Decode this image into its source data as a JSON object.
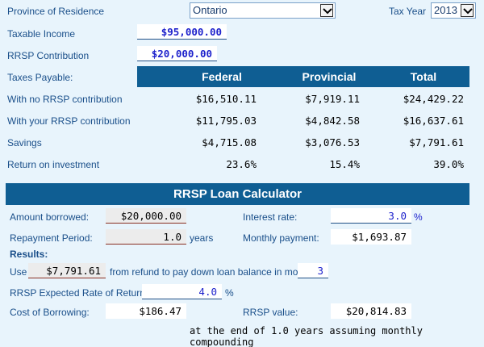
{
  "province": {
    "label": "Province of Residence",
    "selected": "Ontario"
  },
  "tax_year": {
    "label": "Tax Year",
    "selected": "2013"
  },
  "taxable_income": {
    "label": "Taxable Income",
    "value": "$95,000.00"
  },
  "rrsp_contribution": {
    "label": "RRSP Contribution",
    "value": "$20,000.00"
  },
  "taxes": {
    "label": "Taxes Payable:",
    "headers": [
      "Federal",
      "Provincial",
      "Total"
    ],
    "rows": [
      {
        "label": "With no RRSP contribution",
        "values": [
          "$16,510.11",
          "$7,919.11",
          "$24,429.22"
        ]
      },
      {
        "label": "With your RRSP contribution",
        "values": [
          "$11,795.03",
          "$4,842.58",
          "$16,637.61"
        ]
      },
      {
        "label": "Savings",
        "values": [
          "$4,715.08",
          "$3,076.53",
          "$7,791.61"
        ]
      },
      {
        "label": "Return on investment",
        "values": [
          "23.6%",
          "15.4%",
          "39.0%"
        ]
      }
    ]
  },
  "loan": {
    "title": "RRSP Loan Calculator",
    "amount_borrowed": {
      "label": "Amount borrowed:",
      "value": "$20,000.00"
    },
    "interest_rate": {
      "label": "Interest rate:",
      "value": "3.0",
      "unit": "%"
    },
    "repayment_period": {
      "label": "Repayment Period:",
      "value": "1.0",
      "unit": "years"
    },
    "monthly_payment": {
      "label": "Monthly payment:",
      "value": "$1,693.87"
    },
    "results_label": "Results:",
    "use_label": "Use",
    "use_value": "$7,791.61",
    "use_text": "from refund to pay down loan balance in month:",
    "month_value": "3",
    "expected_return": {
      "label": "RRSP Expected Rate of Return:",
      "value": "4.0",
      "unit": "%"
    },
    "cost_of_borrowing": {
      "label": "Cost of Borrowing:",
      "value": "$186.47"
    },
    "rrsp_value": {
      "label": "RRSP value:",
      "value": "$20,814.83"
    },
    "footnote": "at the end of 1.0 years assuming monthly compounding"
  },
  "colors": {
    "band": "#0f5e93",
    "label": "#1a4f8a",
    "input_text": "#1e22cc",
    "background": "#e8f4fc"
  },
  "icons": {
    "dropdown": "chevron-down-icon"
  }
}
